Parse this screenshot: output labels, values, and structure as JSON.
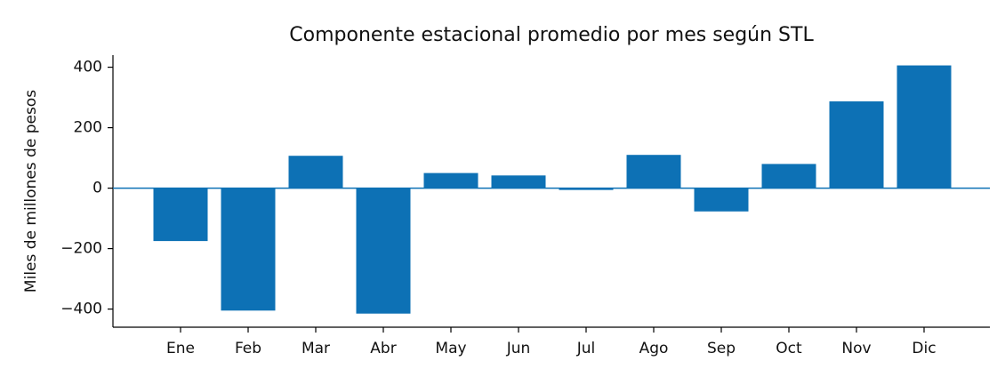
{
  "chart_data": {
    "type": "bar",
    "title": "Componente estacional promedio por mes según STL",
    "y_label": "Miles de millones de pesos",
    "categories": [
      "Ene",
      "Feb",
      "Mar",
      "Abr",
      "May",
      "Jun",
      "Jul",
      "Ago",
      "Sep",
      "Oct",
      "Nov",
      "Dic"
    ],
    "values": [
      -175,
      -405,
      107,
      -415,
      50,
      42,
      -6,
      110,
      -77,
      80,
      287,
      406
    ],
    "color": "#0d71b5",
    "ylim": [
      -460,
      440
    ],
    "yticks": [
      {
        "value": -400,
        "label": "−400"
      },
      {
        "value": -200,
        "label": "−200"
      },
      0,
      200,
      400
    ],
    "grid": false
  }
}
